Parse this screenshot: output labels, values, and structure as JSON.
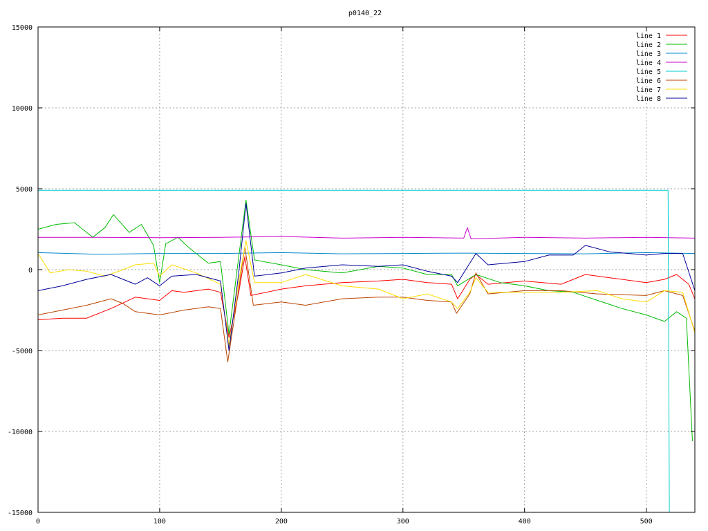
{
  "chart_data": {
    "type": "line",
    "title": "p0140_22",
    "xlim": [
      0,
      540
    ],
    "ylim": [
      -15000,
      15000
    ],
    "x_ticks": [
      0,
      100,
      200,
      300,
      400,
      500
    ],
    "y_ticks": [
      -15000,
      -10000,
      -5000,
      0,
      5000,
      10000,
      15000
    ],
    "grid": true,
    "legend_position": "top-right",
    "series": [
      {
        "name": "line 1",
        "color": "#ff0000",
        "points": [
          [
            0,
            -3100
          ],
          [
            20,
            -3000
          ],
          [
            40,
            -3000
          ],
          [
            60,
            -2400
          ],
          [
            80,
            -1700
          ],
          [
            100,
            -1900
          ],
          [
            110,
            -1300
          ],
          [
            120,
            -1400
          ],
          [
            140,
            -1200
          ],
          [
            150,
            -1400
          ],
          [
            157,
            -4200
          ],
          [
            165,
            -1400
          ],
          [
            170,
            800
          ],
          [
            175,
            -1600
          ],
          [
            200,
            -1200
          ],
          [
            220,
            -1000
          ],
          [
            250,
            -800
          ],
          [
            280,
            -700
          ],
          [
            300,
            -600
          ],
          [
            320,
            -800
          ],
          [
            340,
            -900
          ],
          [
            345,
            -1800
          ],
          [
            355,
            -600
          ],
          [
            360,
            -300
          ],
          [
            370,
            -900
          ],
          [
            400,
            -700
          ],
          [
            430,
            -900
          ],
          [
            450,
            -300
          ],
          [
            470,
            -500
          ],
          [
            500,
            -800
          ],
          [
            515,
            -600
          ],
          [
            525,
            -300
          ],
          [
            535,
            -900
          ],
          [
            540,
            -1800
          ]
        ]
      },
      {
        "name": "line 2",
        "color": "#00bb00",
        "points": [
          [
            0,
            2500
          ],
          [
            15,
            2800
          ],
          [
            30,
            2900
          ],
          [
            45,
            2000
          ],
          [
            55,
            2600
          ],
          [
            62,
            3400
          ],
          [
            75,
            2300
          ],
          [
            85,
            2800
          ],
          [
            95,
            1500
          ],
          [
            100,
            -800
          ],
          [
            105,
            1600
          ],
          [
            115,
            2000
          ],
          [
            125,
            1300
          ],
          [
            140,
            400
          ],
          [
            150,
            500
          ],
          [
            157,
            -4000
          ],
          [
            165,
            800
          ],
          [
            171,
            4300
          ],
          [
            178,
            600
          ],
          [
            200,
            300
          ],
          [
            220,
            0
          ],
          [
            250,
            -200
          ],
          [
            280,
            200
          ],
          [
            300,
            100
          ],
          [
            320,
            -300
          ],
          [
            340,
            -300
          ],
          [
            345,
            -1000
          ],
          [
            360,
            -300
          ],
          [
            380,
            -800
          ],
          [
            400,
            -1000
          ],
          [
            420,
            -1300
          ],
          [
            440,
            -1400
          ],
          [
            460,
            -1900
          ],
          [
            480,
            -2400
          ],
          [
            500,
            -2800
          ],
          [
            515,
            -3200
          ],
          [
            525,
            -2600
          ],
          [
            533,
            -3000
          ],
          [
            538,
            -10600
          ]
        ]
      },
      {
        "name": "line 3",
        "color": "#0088cc",
        "points": [
          [
            0,
            1050
          ],
          [
            50,
            950
          ],
          [
            100,
            1000
          ],
          [
            150,
            1000
          ],
          [
            200,
            1050
          ],
          [
            250,
            980
          ],
          [
            300,
            1000
          ],
          [
            350,
            1020
          ],
          [
            400,
            1000
          ],
          [
            450,
            980
          ],
          [
            500,
            1050
          ],
          [
            540,
            1000
          ]
        ]
      },
      {
        "name": "line 4",
        "color": "#cc00cc",
        "points": [
          [
            0,
            2000
          ],
          [
            50,
            2000
          ],
          [
            100,
            1980
          ],
          [
            150,
            2000
          ],
          [
            200,
            2050
          ],
          [
            250,
            1950
          ],
          [
            300,
            2000
          ],
          [
            350,
            1950
          ],
          [
            353,
            2600
          ],
          [
            356,
            1900
          ],
          [
            400,
            2000
          ],
          [
            450,
            1950
          ],
          [
            500,
            2000
          ],
          [
            540,
            1950
          ]
        ]
      },
      {
        "name": "line 5",
        "color": "#00cccc",
        "points": [
          [
            0,
            4900
          ],
          [
            518,
            4900
          ],
          [
            519,
            -15000
          ]
        ]
      },
      {
        "name": "line 6",
        "color": "#bb4400",
        "points": [
          [
            0,
            -2800
          ],
          [
            20,
            -2500
          ],
          [
            40,
            -2200
          ],
          [
            60,
            -1800
          ],
          [
            70,
            -2100
          ],
          [
            80,
            -2600
          ],
          [
            100,
            -2800
          ],
          [
            120,
            -2500
          ],
          [
            140,
            -2300
          ],
          [
            150,
            -2400
          ],
          [
            156,
            -5700
          ],
          [
            163,
            -2200
          ],
          [
            170,
            1400
          ],
          [
            177,
            -2200
          ],
          [
            200,
            -2000
          ],
          [
            220,
            -2200
          ],
          [
            250,
            -1800
          ],
          [
            280,
            -1700
          ],
          [
            300,
            -1700
          ],
          [
            320,
            -1900
          ],
          [
            340,
            -2000
          ],
          [
            344,
            -2700
          ],
          [
            355,
            -1500
          ],
          [
            360,
            -200
          ],
          [
            370,
            -1500
          ],
          [
            400,
            -1300
          ],
          [
            430,
            -1300
          ],
          [
            460,
            -1500
          ],
          [
            500,
            -1600
          ],
          [
            515,
            -1300
          ],
          [
            530,
            -1600
          ],
          [
            540,
            -3800
          ]
        ]
      },
      {
        "name": "line 7",
        "color": "#ffdd00",
        "points": [
          [
            0,
            1000
          ],
          [
            10,
            -200
          ],
          [
            25,
            0
          ],
          [
            40,
            -100
          ],
          [
            55,
            -400
          ],
          [
            70,
            0
          ],
          [
            80,
            300
          ],
          [
            95,
            400
          ],
          [
            100,
            -400
          ],
          [
            110,
            300
          ],
          [
            130,
            -200
          ],
          [
            150,
            -900
          ],
          [
            157,
            -4700
          ],
          [
            165,
            -700
          ],
          [
            171,
            1800
          ],
          [
            178,
            -800
          ],
          [
            200,
            -800
          ],
          [
            220,
            -300
          ],
          [
            250,
            -1000
          ],
          [
            280,
            -1200
          ],
          [
            300,
            -1800
          ],
          [
            320,
            -1500
          ],
          [
            340,
            -2000
          ],
          [
            345,
            -2400
          ],
          [
            355,
            -1400
          ],
          [
            360,
            -500
          ],
          [
            370,
            -1400
          ],
          [
            400,
            -1400
          ],
          [
            430,
            -1400
          ],
          [
            460,
            -1300
          ],
          [
            480,
            -1800
          ],
          [
            500,
            -2000
          ],
          [
            515,
            -1300
          ],
          [
            530,
            -1400
          ],
          [
            540,
            -3900
          ]
        ]
      },
      {
        "name": "line 8",
        "color": "#000099",
        "points": [
          [
            0,
            -1300
          ],
          [
            20,
            -1000
          ],
          [
            40,
            -600
          ],
          [
            60,
            -300
          ],
          [
            80,
            -900
          ],
          [
            90,
            -500
          ],
          [
            100,
            -1000
          ],
          [
            110,
            -400
          ],
          [
            130,
            -300
          ],
          [
            150,
            -700
          ],
          [
            157,
            -5000
          ],
          [
            165,
            -200
          ],
          [
            171,
            4100
          ],
          [
            178,
            -400
          ],
          [
            200,
            -200
          ],
          [
            220,
            100
          ],
          [
            250,
            300
          ],
          [
            280,
            200
          ],
          [
            300,
            300
          ],
          [
            320,
            -100
          ],
          [
            340,
            -400
          ],
          [
            345,
            -800
          ],
          [
            355,
            400
          ],
          [
            360,
            1000
          ],
          [
            370,
            300
          ],
          [
            400,
            500
          ],
          [
            420,
            900
          ],
          [
            440,
            900
          ],
          [
            450,
            1500
          ],
          [
            470,
            1100
          ],
          [
            500,
            900
          ],
          [
            515,
            1000
          ],
          [
            530,
            1000
          ],
          [
            540,
            -1300
          ]
        ]
      }
    ]
  }
}
